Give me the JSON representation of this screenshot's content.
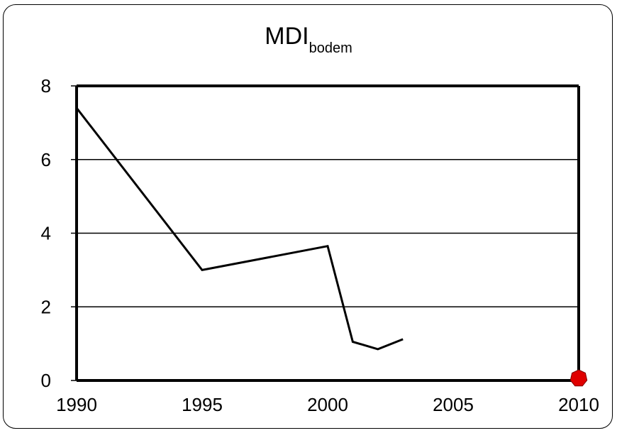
{
  "chart_data": {
    "type": "line",
    "title": "MDI",
    "title_subscript": "bodem",
    "xlabel": "",
    "ylabel": "",
    "xlim": [
      1990,
      2010
    ],
    "ylim": [
      0,
      8
    ],
    "x_ticks": [
      1990,
      1995,
      2000,
      2005,
      2010
    ],
    "y_ticks": [
      0,
      2,
      4,
      6,
      8
    ],
    "grid": "horizontal",
    "series": [
      {
        "x": [
          1990,
          1995,
          2000,
          2001,
          2002,
          2003
        ],
        "y": [
          7.4,
          3.0,
          3.65,
          1.05,
          0.85,
          1.12
        ],
        "color": "#000000"
      }
    ],
    "target_marker": {
      "x": 2010,
      "y": 0,
      "color": "#e00000",
      "shape": "heptagon"
    }
  }
}
